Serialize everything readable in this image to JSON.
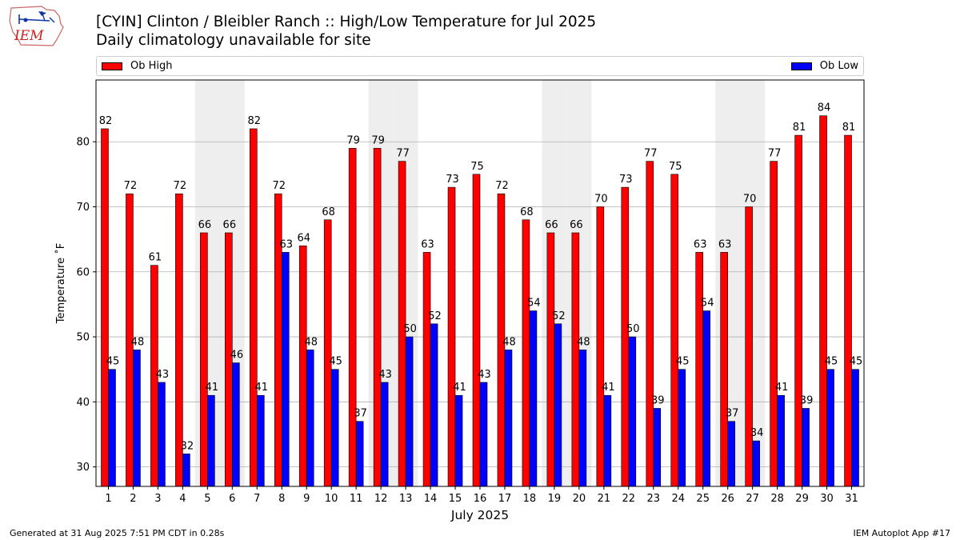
{
  "header": {
    "title": "[CYIN] Clinton / Bleibler Ranch :: High/Low Temperature for Jul 2025",
    "subtitle": "Daily climatology unavailable for site"
  },
  "logo": {
    "text": "IEM",
    "color": "#cc2222"
  },
  "footer": {
    "generated": "Generated at 31 Aug 2025 7:51 PM CDT in 0.28s",
    "app": "IEM Autoplot App #17"
  },
  "chart_data": {
    "type": "bar",
    "xlabel": "July 2025",
    "ylabel": "Temperature ˚F",
    "ylim": [
      27,
      89.5
    ],
    "yticks": [
      30,
      40,
      50,
      60,
      70,
      80
    ],
    "grid": "horizontal",
    "legend_position": "top",
    "categories": [
      "1",
      "2",
      "3",
      "4",
      "5",
      "6",
      "7",
      "8",
      "9",
      "10",
      "11",
      "12",
      "13",
      "14",
      "15",
      "16",
      "17",
      "18",
      "19",
      "20",
      "21",
      "22",
      "23",
      "24",
      "25",
      "26",
      "27",
      "28",
      "29",
      "30",
      "31"
    ],
    "shaded_categories": [
      "5",
      "6",
      "12",
      "13",
      "19",
      "20",
      "26",
      "27"
    ],
    "shade_color": "#eeeeee",
    "series": [
      {
        "name": "Ob High",
        "color": "#ff0000",
        "values": [
          82,
          72,
          61,
          72,
          66,
          66,
          82,
          72,
          64,
          68,
          79,
          79,
          77,
          63,
          73,
          75,
          72,
          68,
          66,
          66,
          70,
          73,
          77,
          75,
          63,
          63,
          70,
          77,
          81,
          84,
          81
        ]
      },
      {
        "name": "Ob Low",
        "color": "#0000ff",
        "values": [
          45,
          48,
          43,
          32,
          41,
          46,
          41,
          63,
          48,
          45,
          37,
          43,
          50,
          52,
          41,
          43,
          48,
          54,
          52,
          48,
          41,
          50,
          39,
          45,
          54,
          37,
          34,
          41,
          39,
          45,
          45
        ]
      }
    ]
  }
}
